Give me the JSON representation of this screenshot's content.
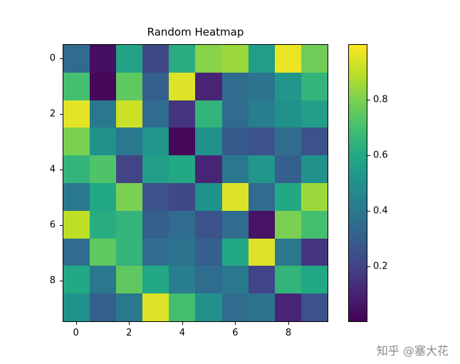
{
  "figure": {
    "background": "#ffffff"
  },
  "watermark": {
    "text": "知乎 @塞大花",
    "color": "#8a8a8a"
  },
  "chart_data": {
    "type": "heatmap",
    "title": "Random Heatmap",
    "grid_size": [
      10,
      10
    ],
    "colormap": "viridis",
    "vmin": 0,
    "vmax": 1,
    "x_tick_positions": [
      0,
      2,
      4,
      6,
      8
    ],
    "x_tick_labels": [
      "0",
      "2",
      "4",
      "6",
      "8"
    ],
    "y_tick_positions": [
      0,
      2,
      4,
      6,
      8
    ],
    "y_tick_labels": [
      "0",
      "2",
      "4",
      "6",
      "8"
    ],
    "colorbar": {
      "ticks": [
        0.2,
        0.4,
        0.6,
        0.8
      ],
      "tick_labels": [
        "0.2",
        "0.4",
        "0.6",
        "0.8"
      ],
      "orientation": "vertical"
    },
    "colormap_stops": [
      {
        "t": 0.0,
        "color": "#440154"
      },
      {
        "t": 0.1,
        "color": "#482475"
      },
      {
        "t": 0.2,
        "color": "#414487"
      },
      {
        "t": 0.3,
        "color": "#355f8d"
      },
      {
        "t": 0.4,
        "color": "#2a788e"
      },
      {
        "t": 0.5,
        "color": "#21918c"
      },
      {
        "t": 0.6,
        "color": "#22a884"
      },
      {
        "t": 0.7,
        "color": "#44bf70"
      },
      {
        "t": 0.8,
        "color": "#7ad151"
      },
      {
        "t": 0.9,
        "color": "#bddf26"
      },
      {
        "t": 1.0,
        "color": "#fde725"
      }
    ],
    "values": [
      [
        0.35,
        0.04,
        0.58,
        0.22,
        0.62,
        0.82,
        0.85,
        0.55,
        0.97,
        0.78
      ],
      [
        0.7,
        0.02,
        0.75,
        0.3,
        0.95,
        0.1,
        0.35,
        0.38,
        0.52,
        0.65
      ],
      [
        0.96,
        0.4,
        0.92,
        0.35,
        0.15,
        0.65,
        0.35,
        0.42,
        0.5,
        0.55
      ],
      [
        0.8,
        0.5,
        0.4,
        0.52,
        0.02,
        0.5,
        0.28,
        0.25,
        0.35,
        0.25
      ],
      [
        0.65,
        0.72,
        0.2,
        0.55,
        0.6,
        0.1,
        0.4,
        0.52,
        0.3,
        0.5
      ],
      [
        0.4,
        0.6,
        0.8,
        0.25,
        0.22,
        0.5,
        0.95,
        0.35,
        0.6,
        0.85
      ],
      [
        0.9,
        0.62,
        0.65,
        0.3,
        0.35,
        0.25,
        0.35,
        0.05,
        0.8,
        0.7
      ],
      [
        0.35,
        0.75,
        0.65,
        0.35,
        0.38,
        0.3,
        0.6,
        0.95,
        0.4,
        0.15
      ],
      [
        0.6,
        0.4,
        0.75,
        0.6,
        0.42,
        0.35,
        0.4,
        0.2,
        0.65,
        0.6
      ],
      [
        0.5,
        0.3,
        0.4,
        0.95,
        0.7,
        0.5,
        0.35,
        0.38,
        0.1,
        0.25
      ]
    ]
  }
}
